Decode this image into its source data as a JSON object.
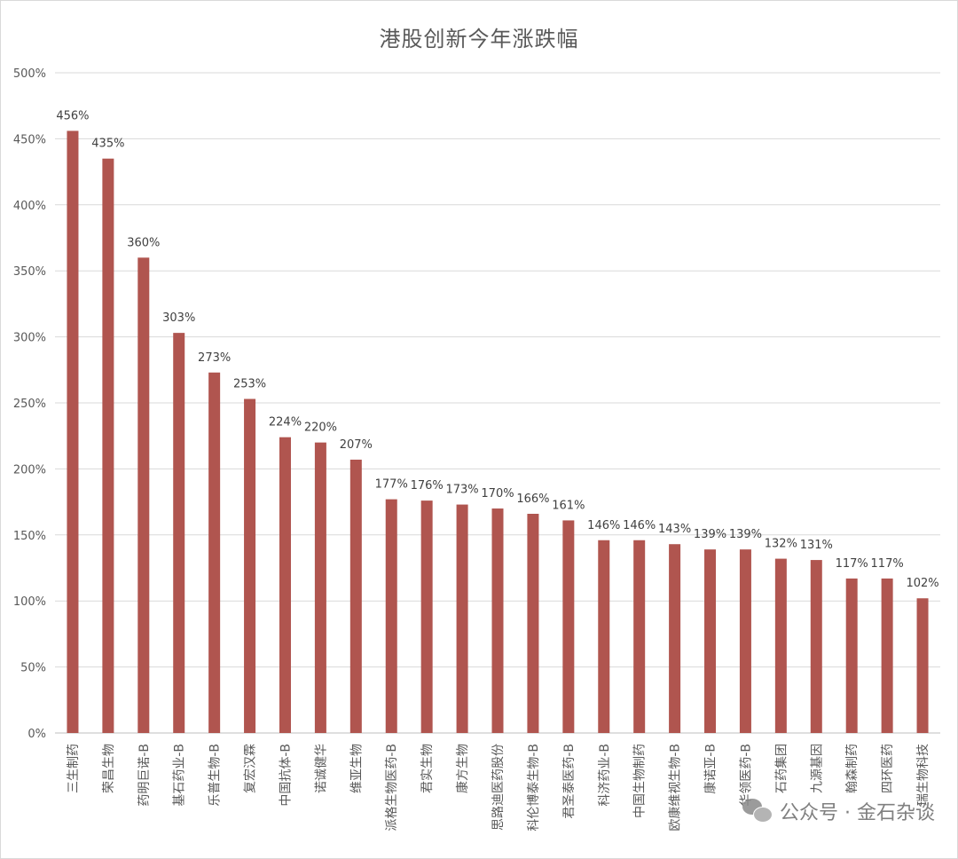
{
  "chart_data": {
    "type": "bar",
    "title": "港股创新今年涨跌幅",
    "categories": [
      "三生制药",
      "荣昌生物",
      "药明巨诺-B",
      "基石药业-B",
      "乐普生物-B",
      "复宏汉霖",
      "中国抗体-B",
      "诺诚健华",
      "维亚生物",
      "派格生物医药-B",
      "君实生物",
      "康方生物",
      "思路迪医药股份",
      "科伦博泰生物-B",
      "君圣泰医药-B",
      "科济药业-B",
      "中国生物制药",
      "欧康维视生物-B",
      "康诺亚-B",
      "华领医药-B",
      "石药集团",
      "九源基因",
      "翰森制药",
      "四环医药",
      "瑞生物科技"
    ],
    "values": [
      456,
      435,
      360,
      303,
      273,
      253,
      224,
      220,
      207,
      177,
      176,
      173,
      170,
      166,
      161,
      146,
      146,
      143,
      139,
      139,
      132,
      131,
      117,
      117,
      102
    ],
    "data_labels": [
      "456%",
      "435%",
      "360%",
      "303%",
      "273%",
      "253%",
      "224%",
      "220%",
      "207%",
      "177%",
      "176%",
      "173%",
      "170%",
      "166%",
      "161%",
      "146%",
      "146%",
      "143%",
      "139%",
      "139%",
      "132%",
      "131%",
      "117%",
      "117%",
      "102%"
    ],
    "y_ticks": [
      "0%",
      "50%",
      "100%",
      "150%",
      "200%",
      "250%",
      "300%",
      "350%",
      "400%",
      "450%",
      "500%"
    ],
    "ylim": [
      0,
      500
    ],
    "grid": true,
    "legend": "none",
    "bar_color": "#b0554f"
  },
  "watermark": {
    "icon": "wechat-icon",
    "text": "公众号 · 金石杂谈"
  }
}
